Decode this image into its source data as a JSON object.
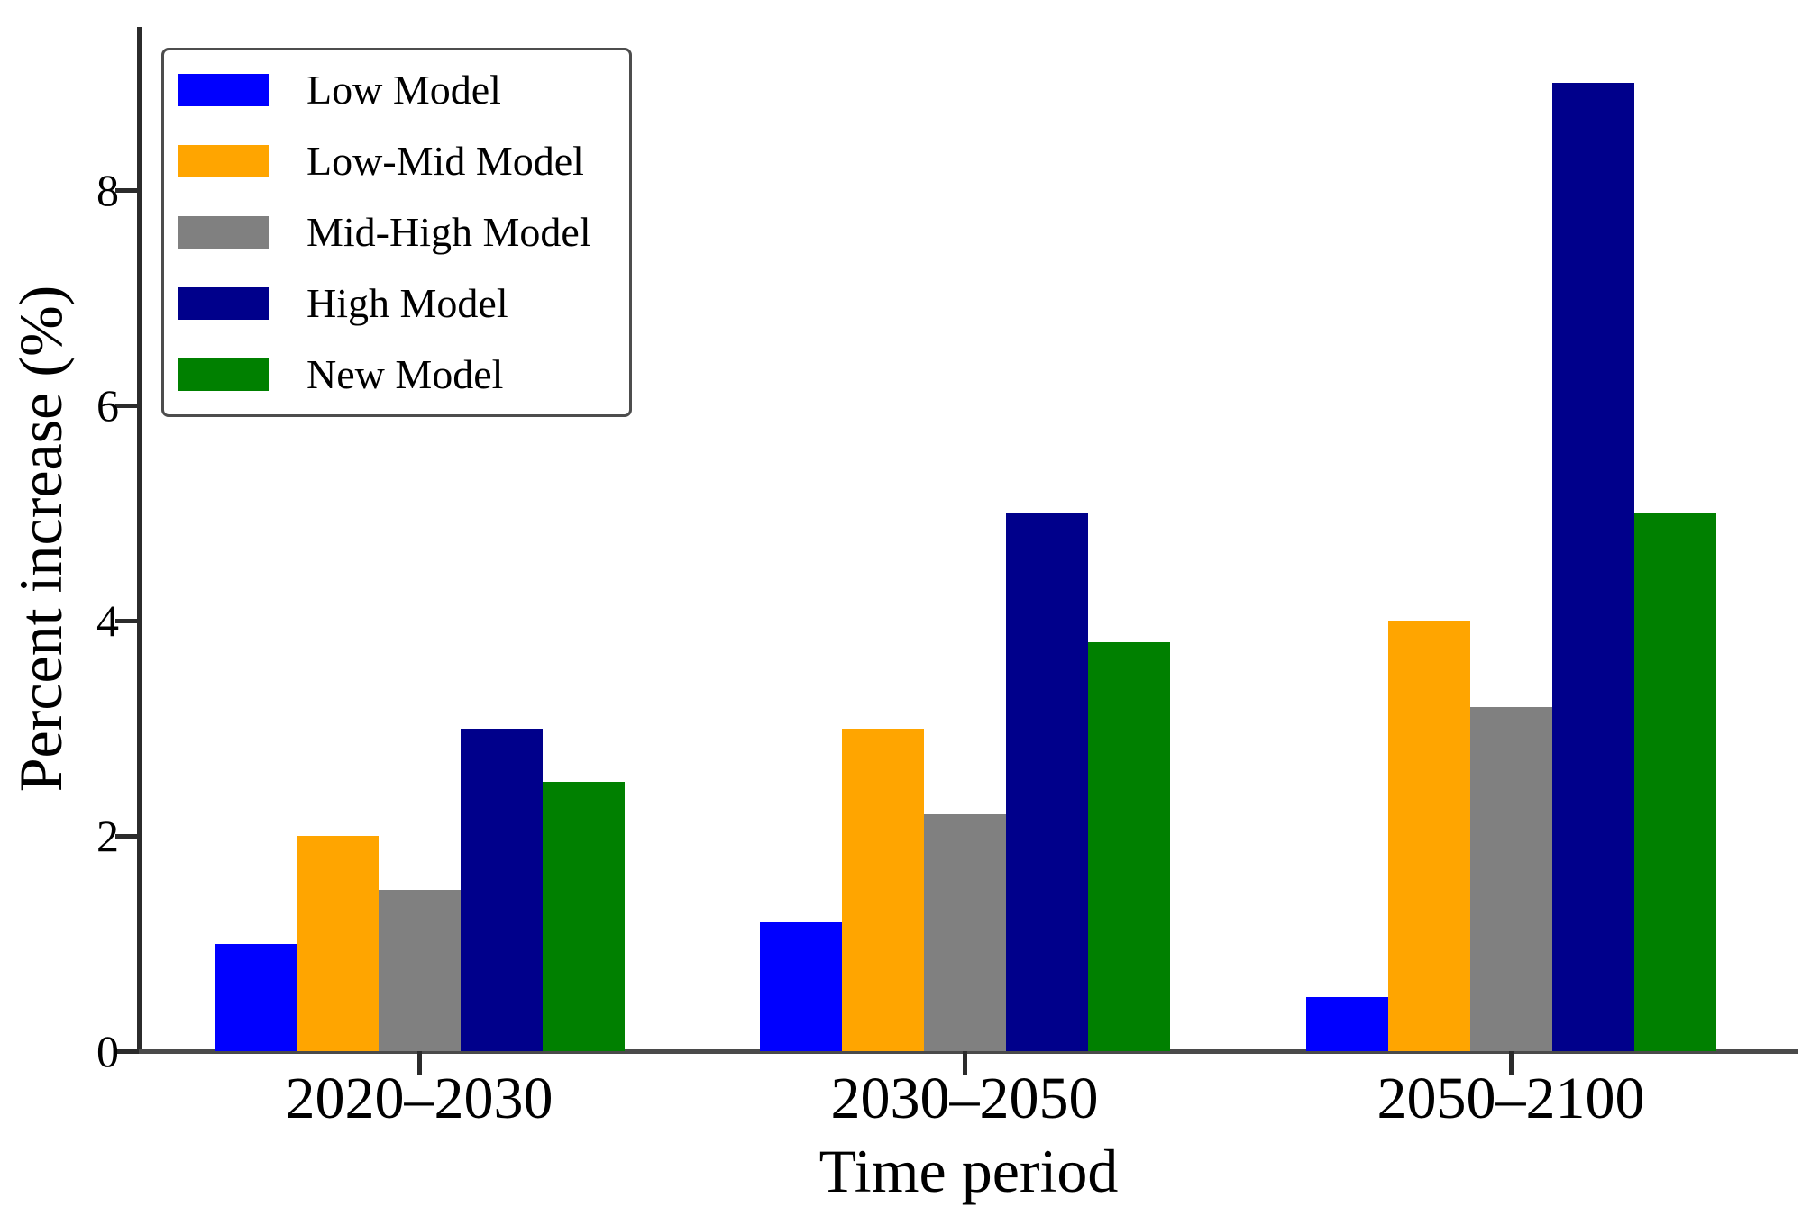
{
  "figure": {
    "background": "#ffffff",
    "text_color": "#000000",
    "axis_color": "#2b2b2b"
  },
  "chart_data": {
    "type": "bar",
    "title": "",
    "xlabel": "Time period",
    "ylabel": "Percent increase (%)",
    "categories": [
      "2020–2030",
      "2030–2050",
      "2050–2100"
    ],
    "series": [
      {
        "name": "Low Model",
        "color": "#0000ff",
        "values": [
          1.0,
          1.2,
          0.5
        ]
      },
      {
        "name": "Low-Mid Model",
        "color": "#ffa500",
        "values": [
          2.0,
          3.0,
          4.0
        ]
      },
      {
        "name": "Mid-High Model",
        "color": "#808080",
        "values": [
          1.5,
          2.2,
          3.2
        ]
      },
      {
        "name": "High Model",
        "color": "#00008b",
        "values": [
          3.0,
          5.0,
          9.0
        ]
      },
      {
        "name": "New Model",
        "color": "#008000",
        "values": [
          2.5,
          3.8,
          5.0
        ]
      }
    ],
    "yticks": [
      0,
      2,
      4,
      6,
      8
    ],
    "ylim": [
      0,
      9.5
    ],
    "grid": false,
    "legend_position": "upper-left",
    "legend_border": true
  }
}
